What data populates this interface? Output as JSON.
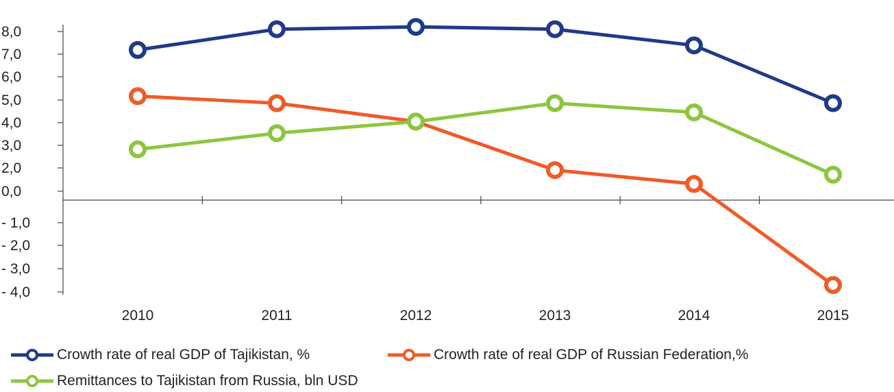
{
  "chart_data": {
    "type": "line",
    "categories": [
      "2010",
      "2011",
      "2012",
      "2013",
      "2014",
      "2015"
    ],
    "y_ticks": [
      "8,0",
      "7,0",
      "6,0",
      "5,0",
      "4,0",
      "3,0",
      "2,0",
      "0,0",
      "- 1,0",
      "- 2,0",
      "- 3,0",
      "- 4,0"
    ],
    "series": [
      {
        "name": "Crowth rate of real GDP of Tajikistan, %",
        "color": "#1f3a8a",
        "values": [
          6.5,
          7.4,
          7.5,
          7.4,
          6.7,
          4.2
        ]
      },
      {
        "name": "Crowth rate of real GDP of Russian Federation,%",
        "color": "#f05a28",
        "values": [
          4.5,
          4.2,
          3.4,
          1.3,
          0.7,
          -3.7
        ]
      },
      {
        "name": "Remittances to Tajikistan from Russia, bln USD",
        "color": "#8cc63f",
        "values": [
          2.2,
          2.9,
          3.4,
          4.2,
          3.8,
          1.1
        ]
      }
    ],
    "ylim": [
      -4,
      8
    ],
    "grid": false,
    "legend_position": "bottom"
  }
}
